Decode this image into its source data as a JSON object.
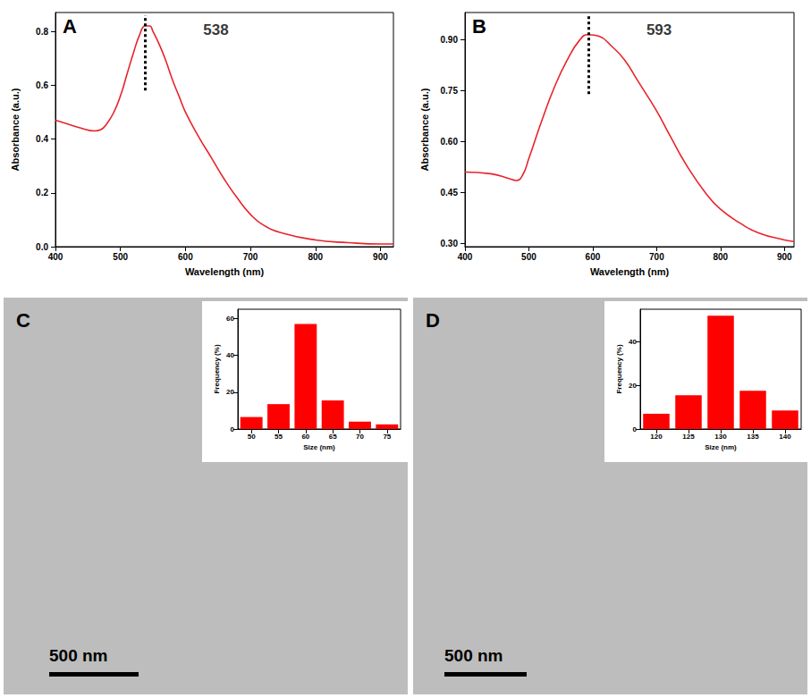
{
  "chart_data": [
    {
      "type": "line",
      "panel": "A",
      "color": "#e8232a",
      "x": [
        400,
        420,
        440,
        460,
        470,
        480,
        490,
        500,
        510,
        520,
        530,
        538,
        545,
        550,
        560,
        570,
        580,
        590,
        600,
        620,
        640,
        660,
        680,
        700,
        720,
        750,
        800,
        850,
        900,
        920
      ],
      "values": [
        0.47,
        0.455,
        0.44,
        0.43,
        0.435,
        0.46,
        0.5,
        0.56,
        0.64,
        0.72,
        0.79,
        0.82,
        0.82,
        0.8,
        0.75,
        0.69,
        0.62,
        0.56,
        0.5,
        0.41,
        0.33,
        0.25,
        0.18,
        0.12,
        0.08,
        0.05,
        0.025,
        0.015,
        0.01,
        0.01
      ],
      "xlim": [
        400,
        920
      ],
      "ylim": [
        0,
        0.87
      ],
      "xticks": [
        400,
        500,
        600,
        700,
        800,
        900
      ],
      "yticks": [
        {
          "value": 0,
          "label": "0.0"
        },
        0.2,
        0.4,
        0.6,
        0.8
      ],
      "x_label": "Wavelength (nm)",
      "y_label": "Absorbance (a.u.)",
      "grid": false,
      "peak": {
        "x": 538,
        "y": [
          0.58,
          0.86
        ]
      }
    },
    {
      "type": "line",
      "panel": "B",
      "color": "#e8232a",
      "x": [
        400,
        440,
        470,
        480,
        490,
        500,
        520,
        540,
        560,
        580,
        593,
        610,
        630,
        650,
        670,
        700,
        720,
        750,
        780,
        800,
        830,
        860,
        900,
        915
      ],
      "values": [
        0.51,
        0.505,
        0.49,
        0.485,
        0.5,
        0.55,
        0.66,
        0.76,
        0.84,
        0.9,
        0.915,
        0.91,
        0.88,
        0.84,
        0.78,
        0.69,
        0.62,
        0.52,
        0.44,
        0.4,
        0.36,
        0.33,
        0.31,
        0.305
      ],
      "xlim": [
        400,
        915
      ],
      "ylim": [
        0.29,
        0.98
      ],
      "xticks": [
        400,
        500,
        600,
        700,
        800,
        900
      ],
      "yticks": [
        {
          "value": 0.3,
          "label": "0.30"
        },
        {
          "value": 0.45,
          "label": "0.45"
        },
        {
          "value": 0.6,
          "label": "0.60"
        },
        {
          "value": 0.75,
          "label": "0.75"
        },
        {
          "value": 0.9,
          "label": "0.90"
        }
      ],
      "x_label": "Wavelength (nm)",
      "y_label": "Absorbance (a.u.)",
      "grid": false,
      "peak": {
        "x": 593,
        "y": [
          0.74,
          0.97
        ]
      }
    },
    {
      "type": "bar",
      "panel": "C",
      "color": "#ff0000",
      "categories": [
        "50",
        "55",
        "60",
        "65",
        "70",
        "75"
      ],
      "values": [
        6.5,
        13.5,
        57,
        15.5,
        4,
        2.5
      ],
      "ylim": [
        0,
        65
      ],
      "yticks": [
        0,
        20,
        40,
        60
      ],
      "x_label": "Size (nm)",
      "y_label": "Frequency (%)",
      "grid": false,
      "scale_bar": "500 nm"
    },
    {
      "type": "bar",
      "panel": "D",
      "color": "#ff0000",
      "categories": [
        "120",
        "125",
        "130",
        "135",
        "140"
      ],
      "values": [
        7,
        15.5,
        52,
        17.5,
        8.5
      ],
      "ylim": [
        0,
        55
      ],
      "yticks": [
        0,
        20,
        40
      ],
      "x_label": "Size (nm)",
      "y_label": "Frequency (%)",
      "grid": false,
      "scale_bar": "500 nm"
    }
  ]
}
